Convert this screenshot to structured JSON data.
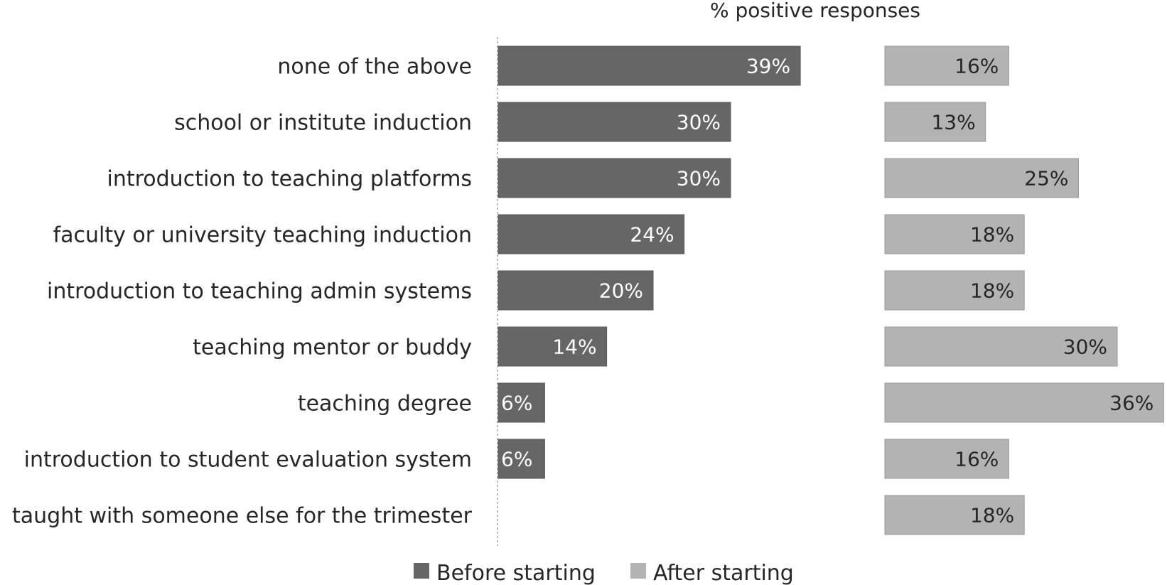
{
  "chart_data": {
    "type": "bar",
    "orientation": "horizontal",
    "title": "% positive responses",
    "categories": [
      "none of the above",
      "school or institute induction",
      "introduction to teaching platforms",
      "faculty or university teaching induction",
      "introduction to teaching admin systems",
      "teaching mentor or buddy",
      "teaching degree",
      "introduction to student evaluation system",
      "taught with someone else for the trimester"
    ],
    "series": [
      {
        "name": "Before starting",
        "color": "#666666",
        "label_color": "#ffffff",
        "values": [
          39,
          30,
          30,
          24,
          20,
          14,
          6,
          6,
          null
        ],
        "labels": [
          "39%",
          "30%",
          "30%",
          "24%",
          "20%",
          "14%",
          "6%",
          "6%",
          ""
        ]
      },
      {
        "name": "After starting",
        "color": "#b3b3b3",
        "label_color": "#262626",
        "values": [
          16,
          13,
          25,
          18,
          18,
          30,
          36,
          16,
          18
        ],
        "labels": [
          "16%",
          "13%",
          "25%",
          "18%",
          "18%",
          "30%",
          "36%",
          "16%",
          "18%"
        ]
      }
    ],
    "xlim": [
      0,
      40
    ],
    "legend": "bottom",
    "grid": false
  }
}
